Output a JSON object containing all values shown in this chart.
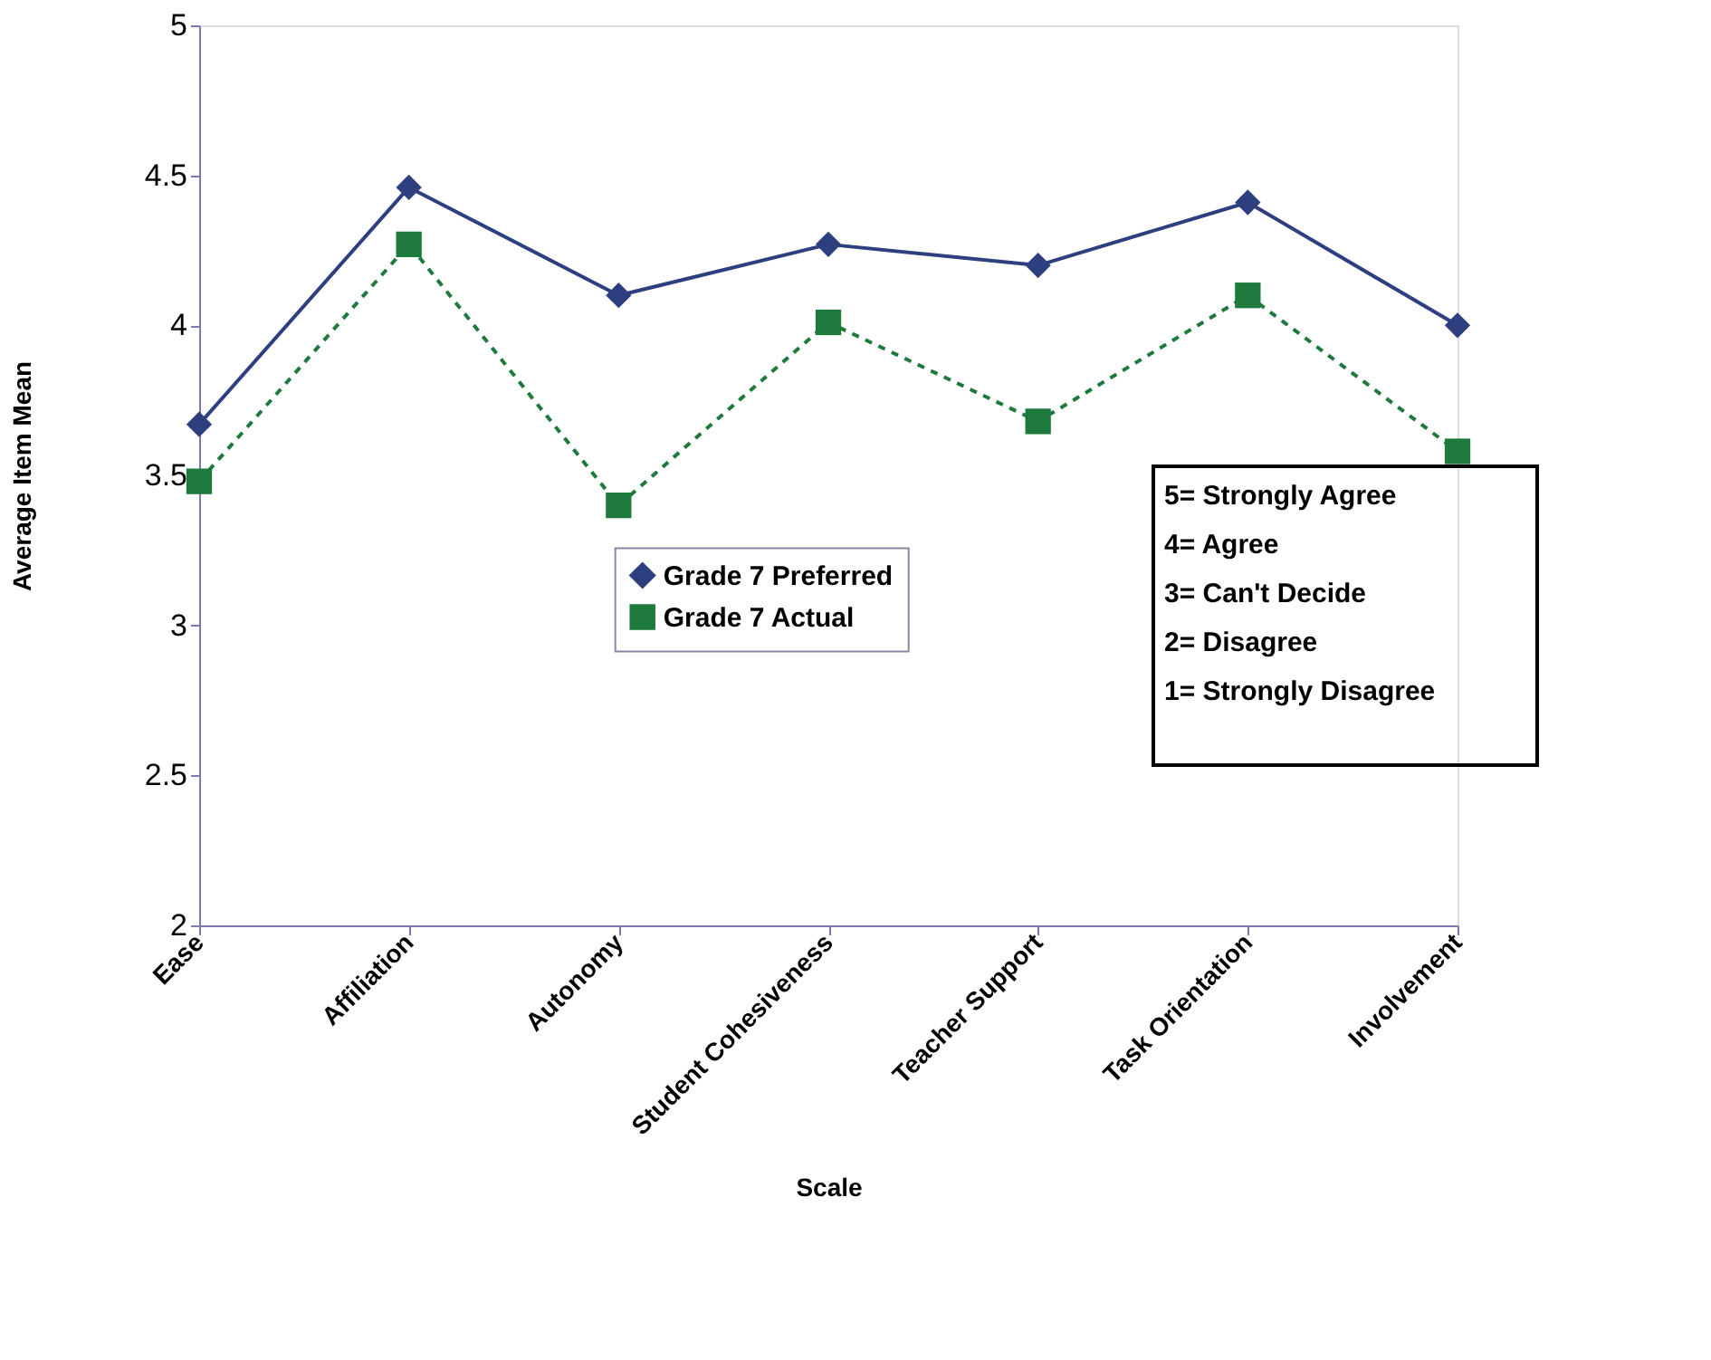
{
  "chart_data": {
    "type": "line",
    "xlabel": "Scale",
    "ylabel": "Average Item Mean",
    "categories": [
      "Ease",
      "Affiliation",
      "Autonomy",
      "Student Cohesiveness",
      "Teacher Support",
      "Task Orientation",
      "Involvement"
    ],
    "series": [
      {
        "name": "Grade 7 Preferred",
        "color": "#2e3f80",
        "marker": "diamond",
        "line_style": "solid",
        "values": [
          3.67,
          4.46,
          4.1,
          4.27,
          4.2,
          4.41,
          4.0
        ]
      },
      {
        "name": "Grade 7 Actual",
        "color": "#1e7a3c",
        "marker": "square",
        "line_style": "dashed",
        "values": [
          3.48,
          4.27,
          3.4,
          4.01,
          3.68,
          4.1,
          3.58
        ]
      }
    ],
    "ylim": [
      2,
      5
    ],
    "yticks": [
      2,
      2.5,
      3,
      3.5,
      4,
      4.5,
      5
    ],
    "grid": false,
    "legend": "center",
    "annotations": [
      "5= Strongly Agree",
      "4= Agree",
      "3= Can't Decide",
      "2= Disagree",
      "1= Strongly Disagree"
    ]
  }
}
